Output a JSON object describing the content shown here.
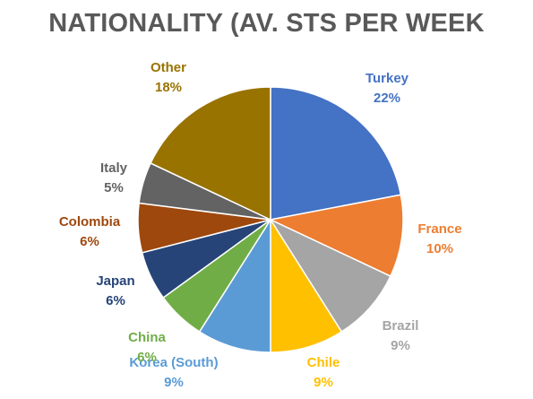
{
  "chart_data": {
    "type": "pie",
    "title": "NATIONALITY (AV. STS PER WEEK",
    "slices": [
      {
        "label": "Turkey",
        "value": 22,
        "value_label": "22%",
        "color": "#4472C4",
        "label_color": "#4472C4"
      },
      {
        "label": "France",
        "value": 10,
        "value_label": "10%",
        "color": "#ED7D31",
        "label_color": "#ED7D31"
      },
      {
        "label": "Brazil",
        "value": 9,
        "value_label": "9%",
        "color": "#A5A5A5",
        "label_color": "#A5A5A5"
      },
      {
        "label": "Chile",
        "value": 9,
        "value_label": "9%",
        "color": "#FFC000",
        "label_color": "#FFC000"
      },
      {
        "label": "Korea (South)",
        "value": 9,
        "value_label": "9%",
        "color": "#5B9BD5",
        "label_color": "#5B9BD5"
      },
      {
        "label": "China",
        "value": 6,
        "value_label": "6%",
        "color": "#70AD47",
        "label_color": "#70AD47"
      },
      {
        "label": "Japan",
        "value": 6,
        "value_label": "6%",
        "color": "#264478",
        "label_color": "#264478"
      },
      {
        "label": "Colombia",
        "value": 6,
        "value_label": "6%",
        "color": "#9E480E",
        "label_color": "#9E480E"
      },
      {
        "label": "Italy",
        "value": 5,
        "value_label": "5%",
        "color": "#636363",
        "label_color": "#636363"
      },
      {
        "label": "Other",
        "value": 18,
        "value_label": "18%",
        "color": "#997300",
        "label_color": "#997300"
      }
    ]
  }
}
